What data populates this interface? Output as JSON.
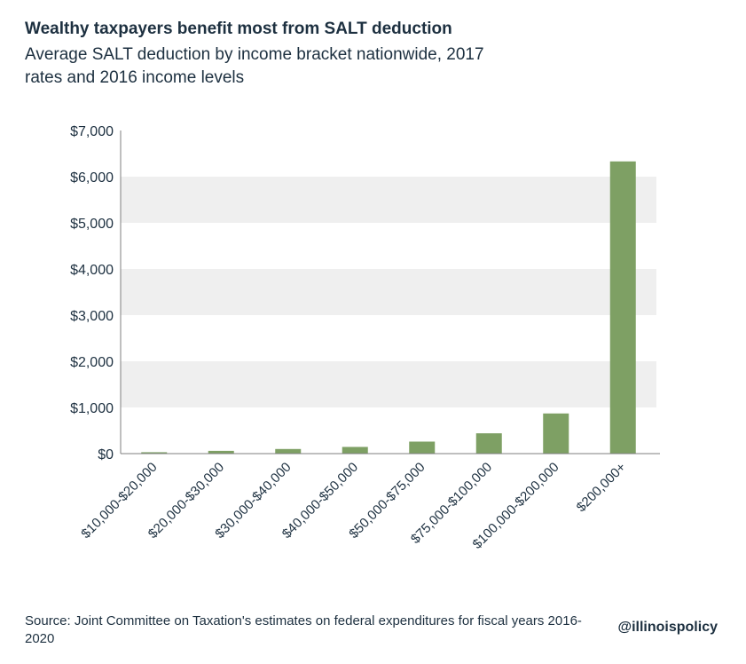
{
  "header": {
    "title": "Wealthy taxpayers benefit most from SALT deduction",
    "subtitle": "Average SALT deduction by income bracket nationwide, 2017 rates and 2016 income levels"
  },
  "footer": {
    "source": "Source: Joint Committee on Taxation's estimates on federal expenditures for fiscal years 2016-2020",
    "handle": "@illinoispolicy"
  },
  "colors": {
    "bar": "#7ea064",
    "band": "#efefef",
    "axis": "#7f7f7f",
    "text": "#1d3040"
  },
  "chart_data": {
    "type": "bar",
    "title": "Wealthy taxpayers benefit most from SALT deduction",
    "subtitle": "Average SALT deduction by income bracket nationwide, 2017 rates and 2016 income levels",
    "categories": [
      "$10,000-$20,000",
      "$20,000-$30,000",
      "$30,000-$40,000",
      "$40,000-$50,000",
      "$50,000-$75,000",
      "$75,000-$100,000",
      "$100,000-$200,000",
      "$200,000+"
    ],
    "values": [
      30,
      60,
      100,
      145,
      260,
      440,
      870,
      6330
    ],
    "ylim": [
      0,
      7000
    ],
    "yticks": [
      0,
      1000,
      2000,
      3000,
      4000,
      5000,
      6000,
      7000
    ],
    "ytick_labels": [
      "$0",
      "$1,000",
      "$2,000",
      "$3,000",
      "$4,000",
      "$5,000",
      "$6,000",
      "$7,000"
    ],
    "grid": "alternating horizontal bands",
    "legend": "none"
  }
}
